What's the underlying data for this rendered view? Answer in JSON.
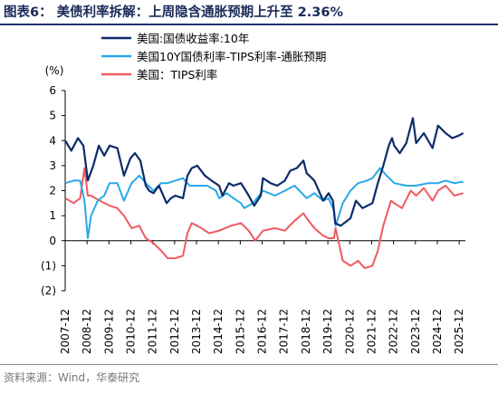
{
  "header": {
    "title": "图表6：  美债利率拆解：上周隐含通胀预期上升至 2.36%"
  },
  "footer": {
    "source": "资料来源：Wind，华泰研究"
  },
  "chart_data": {
    "type": "line",
    "ylabel": "(%)",
    "ylim": [
      -2,
      6
    ],
    "yticks": [
      6,
      5,
      4,
      3,
      2,
      1,
      0,
      -1,
      -2
    ],
    "ytick_labels": [
      "6",
      "5",
      "4",
      "3",
      "2",
      "1",
      "0",
      "(1)",
      "(2)"
    ],
    "xlim": [
      2007.917,
      2026.2
    ],
    "xticks": [
      "2007-12",
      "2008-12",
      "2009-12",
      "2010-12",
      "2011-12",
      "2012-12",
      "2013-12",
      "2014-12",
      "2015-12",
      "2016-12",
      "2017-12",
      "2018-12",
      "2019-12",
      "2020-12",
      "2021-12",
      "2022-12",
      "2023-12",
      "2024-12",
      "2025-12"
    ],
    "legend_position": "top-left",
    "grid": false,
    "series": [
      {
        "name": "美国:国债收益率:10年",
        "color": "#0d2b6b",
        "x": [
          2007.92,
          2008.2,
          2008.5,
          2008.75,
          2008.95,
          2009.2,
          2009.45,
          2009.7,
          2009.95,
          2010.3,
          2010.6,
          2010.9,
          2011.1,
          2011.35,
          2011.6,
          2011.75,
          2011.95,
          2012.2,
          2012.55,
          2012.75,
          2012.95,
          2013.3,
          2013.5,
          2013.7,
          2013.95,
          2014.3,
          2014.6,
          2014.95,
          2015.1,
          2015.4,
          2015.6,
          2015.95,
          2016.3,
          2016.55,
          2016.85,
          2016.95,
          2017.3,
          2017.6,
          2017.95,
          2018.2,
          2018.5,
          2018.8,
          2018.95,
          2019.3,
          2019.7,
          2019.95,
          2020.15,
          2020.25,
          2020.5,
          2020.8,
          2020.95,
          2021.2,
          2021.5,
          2021.95,
          2022.2,
          2022.45,
          2022.7,
          2022.85,
          2022.95,
          2023.2,
          2023.5,
          2023.8,
          2023.95,
          2024.3,
          2024.7,
          2024.95,
          2025.3,
          2025.6,
          2025.9,
          2026.1
        ],
        "values": [
          4.0,
          3.6,
          4.1,
          3.8,
          2.4,
          3.0,
          3.8,
          3.4,
          3.8,
          3.7,
          2.6,
          3.3,
          3.5,
          3.2,
          2.2,
          2.0,
          1.9,
          2.2,
          1.5,
          1.7,
          1.8,
          1.7,
          2.6,
          2.9,
          3.0,
          2.6,
          2.4,
          2.2,
          1.8,
          2.3,
          2.2,
          2.3,
          1.8,
          1.4,
          1.8,
          2.5,
          2.3,
          2.2,
          2.4,
          2.8,
          2.9,
          3.2,
          2.7,
          2.4,
          1.6,
          1.9,
          1.6,
          0.7,
          0.6,
          0.8,
          0.9,
          1.6,
          1.3,
          1.5,
          2.3,
          3.0,
          3.8,
          4.1,
          3.8,
          3.5,
          3.9,
          4.9,
          3.9,
          4.3,
          3.7,
          4.6,
          4.3,
          4.1,
          4.2,
          4.3
        ]
      },
      {
        "name": "美国10Y国债利率-TIPS利率-通胀预期",
        "color": "#27a9e8",
        "x": [
          2007.92,
          2008.3,
          2008.6,
          2008.8,
          2008.95,
          2009.1,
          2009.4,
          2009.7,
          2009.95,
          2010.3,
          2010.6,
          2010.95,
          2011.3,
          2011.6,
          2011.95,
          2012.3,
          2012.6,
          2012.95,
          2013.3,
          2013.6,
          2013.95,
          2014.4,
          2014.8,
          2014.95,
          2015.3,
          2015.6,
          2015.95,
          2016.1,
          2016.5,
          2016.95,
          2017.5,
          2017.95,
          2018.4,
          2018.95,
          2019.3,
          2019.7,
          2019.95,
          2020.2,
          2020.27,
          2020.6,
          2020.95,
          2021.3,
          2021.7,
          2021.95,
          2022.3,
          2022.6,
          2022.95,
          2023.5,
          2023.95,
          2024.5,
          2024.95,
          2025.3,
          2025.7,
          2026.1
        ],
        "values": [
          2.3,
          2.4,
          2.4,
          1.6,
          0.1,
          1.0,
          1.6,
          1.8,
          2.3,
          2.3,
          1.6,
          2.3,
          2.6,
          2.3,
          2.0,
          2.3,
          2.3,
          2.4,
          2.5,
          2.2,
          2.2,
          2.2,
          2.0,
          1.7,
          1.9,
          1.7,
          1.5,
          1.3,
          1.5,
          2.0,
          1.8,
          2.0,
          2.2,
          1.7,
          1.9,
          1.6,
          1.7,
          1.2,
          0.6,
          1.5,
          2.0,
          2.3,
          2.4,
          2.5,
          2.9,
          2.6,
          2.3,
          2.2,
          2.2,
          2.3,
          2.3,
          2.4,
          2.3,
          2.36
        ]
      },
      {
        "name": "美国：TIPS利率",
        "color": "#f05a60",
        "x": [
          2007.92,
          2008.3,
          2008.6,
          2008.8,
          2008.95,
          2009.1,
          2009.5,
          2009.95,
          2010.3,
          2010.6,
          2010.95,
          2011.3,
          2011.6,
          2011.95,
          2012.3,
          2012.6,
          2012.95,
          2013.3,
          2013.5,
          2013.7,
          2013.95,
          2014.5,
          2014.95,
          2015.5,
          2015.95,
          2016.3,
          2016.6,
          2016.95,
          2017.5,
          2017.95,
          2018.4,
          2018.8,
          2018.95,
          2019.3,
          2019.7,
          2019.95,
          2020.2,
          2020.27,
          2020.6,
          2020.95,
          2021.3,
          2021.6,
          2021.95,
          2022.2,
          2022.45,
          2022.8,
          2022.95,
          2023.3,
          2023.7,
          2023.95,
          2024.3,
          2024.7,
          2024.95,
          2025.3,
          2025.7,
          2026.1
        ],
        "values": [
          1.7,
          1.5,
          1.7,
          2.9,
          1.8,
          1.8,
          1.6,
          1.4,
          1.3,
          1.0,
          0.5,
          0.6,
          0.1,
          -0.1,
          -0.4,
          -0.7,
          -0.7,
          -0.6,
          0.3,
          0.7,
          0.6,
          0.3,
          0.4,
          0.6,
          0.7,
          0.4,
          0.0,
          0.4,
          0.5,
          0.4,
          0.8,
          1.1,
          0.9,
          0.5,
          0.2,
          0.1,
          0.1,
          0.5,
          -0.8,
          -1.0,
          -0.8,
          -1.1,
          -1.0,
          -0.4,
          0.6,
          1.6,
          1.5,
          1.3,
          2.0,
          1.8,
          2.1,
          1.6,
          2.0,
          2.2,
          1.8,
          1.9
        ]
      }
    ]
  }
}
